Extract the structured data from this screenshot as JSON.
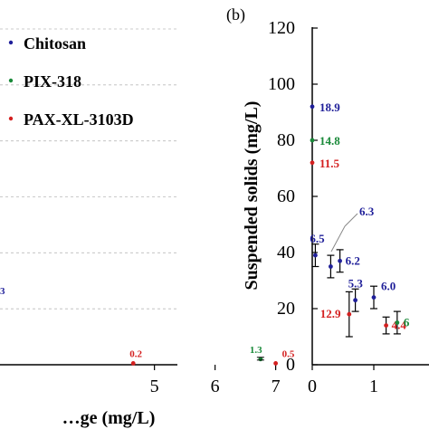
{
  "chart_data": [
    {
      "type": "scatter",
      "title": "",
      "xlabel": "…ge (mg/L)",
      "ylabel": "",
      "xlim": [
        2.9,
        7.2
      ],
      "ylim": [
        0,
        120
      ],
      "x_ticks": [
        "5",
        "6",
        "7"
      ],
      "grid": "horizontal dashed",
      "legend_position": "top-left",
      "legend": [
        {
          "name": "Chitosan",
          "color": "#1f1f99"
        },
        {
          "name": "PIX-318",
          "color": "#1a8a3a"
        },
        {
          "name": "PAX-XL-3103D",
          "color": "#d42020"
        }
      ],
      "points": [
        {
          "x": 4.65,
          "y": 0.5,
          "color": "#d42020",
          "label": "0.2"
        },
        {
          "x": 6.75,
          "y": 2.0,
          "color": "#1a8a3a",
          "label": "1.3"
        },
        {
          "x": 7.0,
          "y": 0.5,
          "color": "#d42020",
          "label": "0.5"
        }
      ],
      "edge_labels": [
        {
          "text": "3",
          "color": "#1f1f99"
        }
      ]
    },
    {
      "type": "scatter",
      "panel_label": "(b)",
      "title": "",
      "xlabel": "",
      "ylabel": "Suspended solids (mg/L)",
      "xlim": [
        0,
        1.4
      ],
      "ylim": [
        0,
        120
      ],
      "x_ticks": [
        "0",
        "1"
      ],
      "y_ticks": [
        "0",
        "20",
        "40",
        "60",
        "80",
        "100",
        "120"
      ],
      "points": [
        {
          "x": 0.0,
          "y": 92,
          "err": 0,
          "color": "#1f1f99",
          "label": "18.9"
        },
        {
          "x": 0.0,
          "y": 80,
          "err": 0,
          "color": "#1a8a3a",
          "label": "14.8"
        },
        {
          "x": 0.0,
          "y": 72,
          "err": 0,
          "color": "#d42020",
          "label": "11.5"
        },
        {
          "x": 0.05,
          "y": 39,
          "err": 4,
          "color": "#1f1f99",
          "label": "6.5"
        },
        {
          "x": 0.3,
          "y": 35,
          "err": 4,
          "color": "#1f1f99",
          "label": "6.3"
        },
        {
          "x": 0.45,
          "y": 37,
          "err": 4,
          "color": "#1f1f99",
          "label": "6.2"
        },
        {
          "x": 0.6,
          "y": 18,
          "err": 8,
          "color": "#d42020",
          "label": "12.9"
        },
        {
          "x": 0.7,
          "y": 23,
          "err": 4,
          "color": "#1f1f99",
          "label": "5.3"
        },
        {
          "x": 1.0,
          "y": 24,
          "err": 4,
          "color": "#1f1f99",
          "label": "6.0"
        },
        {
          "x": 1.2,
          "y": 14,
          "err": 3,
          "color": "#d42020",
          "label": "4.4"
        },
        {
          "x": 1.38,
          "y": 15,
          "err": 4,
          "color": "#1a8a3a",
          "label": "6"
        }
      ]
    }
  ]
}
